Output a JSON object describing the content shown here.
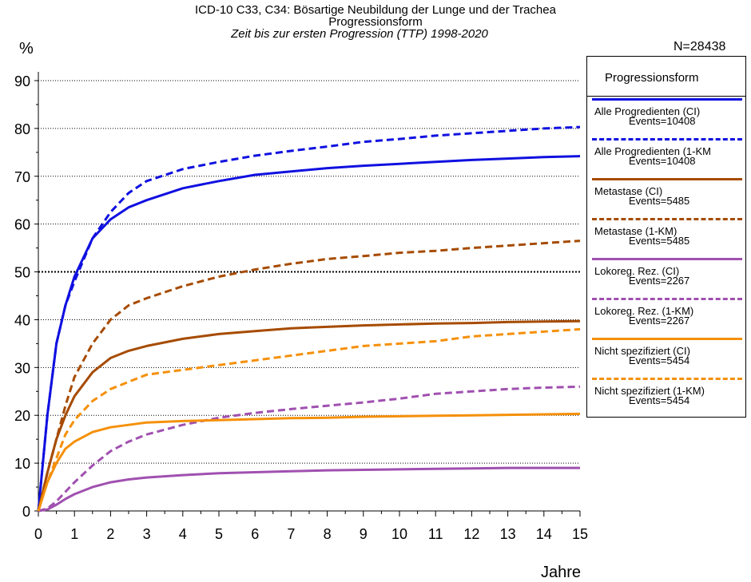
{
  "chart_data": {
    "type": "line",
    "title": "ICD-10 C33, C34: Bösartige Neubildung der Lunge und der Trachea",
    "subtitle": "Progressionsform",
    "subtitle2": "Zeit bis zur ersten Progression (TTP) 1998-2020",
    "n_label": "N=28438",
    "ylabel": "%",
    "xlabel": "Jahre",
    "xlim": [
      0,
      15
    ],
    "ylim": [
      0,
      92
    ],
    "xticks": [
      "0",
      "1",
      "2",
      "3",
      "4",
      "5",
      "6",
      "7",
      "8",
      "9",
      "10",
      "11",
      "12",
      "13",
      "14",
      "15"
    ],
    "yticks": [
      "0",
      "10",
      "20",
      "30",
      "40",
      "50",
      "60",
      "70",
      "80",
      "90"
    ],
    "grid": "horizontal dotted at 10–90, bold dotted at 50",
    "legend_title": "Progressionsform",
    "legend_position": "right",
    "x": [
      0,
      0.25,
      0.5,
      0.75,
      1,
      1.5,
      2,
      2.5,
      3,
      4,
      5,
      6,
      7,
      8,
      9,
      10,
      11,
      12,
      13,
      14,
      15
    ],
    "series": [
      {
        "name": "Alle Progredienten (CI)",
        "events": "Events=10408",
        "color": "#1010e0",
        "dash": false,
        "values": [
          0,
          20,
          35,
          43,
          49,
          57,
          61,
          63.5,
          65,
          67.5,
          69,
          70.3,
          71,
          71.7,
          72.2,
          72.6,
          73,
          73.4,
          73.7,
          74,
          74.2
        ]
      },
      {
        "name": "Alle Progredienten (1-KM",
        "events": "Events=10408",
        "color": "#1010e0",
        "dash": true,
        "values": [
          0,
          20,
          35,
          43,
          48,
          57,
          62.5,
          66.5,
          69,
          71.5,
          73,
          74.3,
          75.3,
          76.2,
          77.2,
          77.8,
          78.5,
          79,
          79.5,
          80,
          80.3
        ]
      },
      {
        "name": "Metastase (CI)",
        "events": "Events=5485",
        "color": "#a64b00",
        "dash": false,
        "values": [
          0,
          8,
          15,
          20,
          24,
          29,
          32,
          33.5,
          34.5,
          36,
          37,
          37.6,
          38.2,
          38.5,
          38.8,
          39,
          39.2,
          39.3,
          39.5,
          39.6,
          39.7
        ]
      },
      {
        "name": "Metastase (1-KM)",
        "events": "Events=5485",
        "color": "#a64b00",
        "dash": true,
        "values": [
          0,
          8,
          15,
          22,
          28,
          35,
          40,
          43,
          44.5,
          47,
          49,
          50.5,
          51.7,
          52.7,
          53.3,
          54,
          54.4,
          55,
          55.5,
          56,
          56.5
        ]
      },
      {
        "name": "Lokoreg. Rez. (CI)",
        "events": "Events=2267",
        "color": "#a050b0",
        "dash": false,
        "values": [
          0,
          0.3,
          1.3,
          2.5,
          3.5,
          5,
          6,
          6.6,
          7,
          7.5,
          7.9,
          8.1,
          8.3,
          8.5,
          8.6,
          8.7,
          8.8,
          8.9,
          9,
          9,
          9
        ]
      },
      {
        "name": "Lokoreg. Rez. (1-KM)",
        "events": "Events=2267",
        "color": "#a050b0",
        "dash": true,
        "values": [
          0,
          0.5,
          2,
          4,
          6,
          9.5,
          12.5,
          14.5,
          16,
          18,
          19.5,
          20.5,
          21.3,
          22,
          22.7,
          23.5,
          24.5,
          25,
          25.5,
          25.8,
          26
        ]
      },
      {
        "name": "Nicht spezifiziert (CI)",
        "events": "Events=5454",
        "color": "#f5900a",
        "dash": false,
        "values": [
          0,
          6,
          10,
          13,
          14.5,
          16.5,
          17.5,
          18,
          18.5,
          18.8,
          19,
          19.2,
          19.4,
          19.5,
          19.7,
          19.8,
          19.9,
          20,
          20.1,
          20.2,
          20.3
        ]
      },
      {
        "name": "Nicht spezifiziert (1-KM)",
        "events": "Events=5454",
        "color": "#f5900a",
        "dash": true,
        "values": [
          0,
          6,
          11,
          16,
          19,
          23,
          25.5,
          27,
          28.5,
          29.5,
          30.5,
          31.5,
          32.5,
          33.5,
          34.5,
          35,
          35.5,
          36.5,
          37,
          37.5,
          38
        ]
      }
    ]
  }
}
